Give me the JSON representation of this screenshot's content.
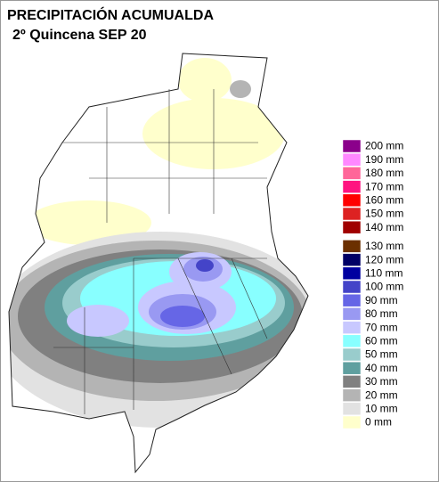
{
  "title": "PRECIPITACIÓN ACUMUALDA",
  "subtitle": "2º Quincena SEP 20",
  "legend": [
    {
      "label": "200 mm",
      "color": "#8b008b"
    },
    {
      "label": "190 mm",
      "color": "#ff88ff"
    },
    {
      "label": "180 mm",
      "color": "#ff6699"
    },
    {
      "label": "170 mm",
      "color": "#ff1480"
    },
    {
      "label": "160 mm",
      "color": "#ff0000"
    },
    {
      "label": "150 mm",
      "color": "#dd2222"
    },
    {
      "label": "140 mm",
      "color": "#a00000"
    },
    {
      "label": "130 mm",
      "color": "#6b3000"
    },
    {
      "label": "120 mm",
      "color": "#000066"
    },
    {
      "label": "110 mm",
      "color": "#0000a0"
    },
    {
      "label": "100 mm",
      "color": "#4444c8"
    },
    {
      "label": "90 mm",
      "color": "#6666e6"
    },
    {
      "label": "80 mm",
      "color": "#9999f2"
    },
    {
      "label": "70 mm",
      "color": "#c8c8ff"
    },
    {
      "label": "60 mm",
      "color": "#88ffff"
    },
    {
      "label": "50 mm",
      "color": "#99cccc"
    },
    {
      "label": "40 mm",
      "color": "#5f9f9f"
    },
    {
      "label": "30 mm",
      "color": "#808080"
    },
    {
      "label": "20 mm",
      "color": "#b4b4b4"
    },
    {
      "label": "10 mm",
      "color": "#e2e2e2"
    },
    {
      "label": "0 mm",
      "color": "#ffffcc"
    }
  ]
}
